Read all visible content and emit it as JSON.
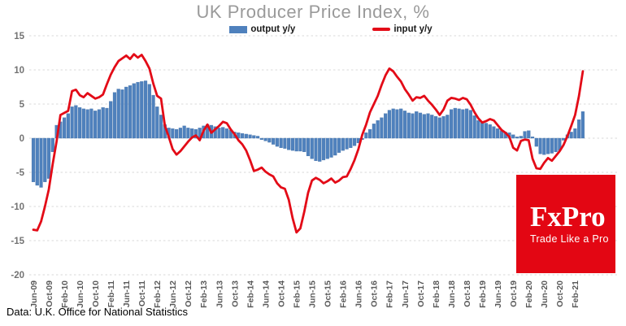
{
  "title": "UK Producer Price Index, %",
  "legend": {
    "output": "output y/y",
    "input": "input y/y"
  },
  "source_note": "Data: U.K. Office for National Statistics",
  "logo": {
    "brand": "FxPro",
    "tagline": "Trade Like a Pro"
  },
  "colors": {
    "bar": "#4f81bd",
    "bar_edge": "#3f6ea5",
    "line": "#e30b17",
    "grid": "#d9d9d9",
    "axis_text": "#737373",
    "x_axis_text": "#595959",
    "title_text": "#9a9a9a",
    "legend_text": "#1a1a1a",
    "logo_bg": "#e30613",
    "logo_text": "#ffffff"
  },
  "chart_data": {
    "type": "bar+line",
    "title": "UK Producer Price Index, %",
    "xlabel": "",
    "ylabel": "",
    "ylim": [
      -20,
      15
    ],
    "yticks": [
      15,
      10,
      5,
      0,
      -5,
      -10,
      -15,
      -20
    ],
    "grid": "dashed-horizontal",
    "legend_position": "top-center",
    "x_frequency": "monthly",
    "x_tick_step": 4,
    "x_tick_labels": [
      "Jun-09",
      "Oct-09",
      "Feb-10",
      "Jun-10",
      "Oct-10",
      "Feb-11",
      "Jun-11",
      "Oct-11",
      "Feb-12",
      "Jun-12",
      "Oct-12",
      "Feb-13",
      "Jun-13",
      "Oct-13",
      "Feb-14",
      "Jun-14",
      "Oct-14",
      "Feb-15",
      "Jun-15",
      "Oct-15",
      "Feb-16",
      "Jun-16",
      "Oct-16",
      "Feb-17",
      "Jun-17",
      "Oct-17",
      "Feb-18",
      "Jun-18",
      "Oct-18",
      "Feb-19",
      "Jun-19",
      "Oct-19",
      "Feb-20",
      "Jun-20",
      "Oct-20",
      "Feb-21"
    ],
    "x": [
      "Jun-09",
      "Jul-09",
      "Aug-09",
      "Sep-09",
      "Oct-09",
      "Nov-09",
      "Dec-09",
      "Jan-10",
      "Feb-10",
      "Mar-10",
      "Apr-10",
      "May-10",
      "Jun-10",
      "Jul-10",
      "Aug-10",
      "Sep-10",
      "Oct-10",
      "Nov-10",
      "Dec-10",
      "Jan-11",
      "Feb-11",
      "Mar-11",
      "Apr-11",
      "May-11",
      "Jun-11",
      "Jul-11",
      "Aug-11",
      "Sep-11",
      "Oct-11",
      "Nov-11",
      "Dec-11",
      "Jan-12",
      "Feb-12",
      "Mar-12",
      "Apr-12",
      "May-12",
      "Jun-12",
      "Jul-12",
      "Aug-12",
      "Sep-12",
      "Oct-12",
      "Nov-12",
      "Dec-12",
      "Jan-13",
      "Feb-13",
      "Mar-13",
      "Apr-13",
      "May-13",
      "Jun-13",
      "Jul-13",
      "Aug-13",
      "Sep-13",
      "Oct-13",
      "Nov-13",
      "Dec-13",
      "Jan-14",
      "Feb-14",
      "Mar-14",
      "Apr-14",
      "May-14",
      "Jun-14",
      "Jul-14",
      "Aug-14",
      "Sep-14",
      "Oct-14",
      "Nov-14",
      "Dec-14",
      "Jan-15",
      "Feb-15",
      "Mar-15",
      "Apr-15",
      "May-15",
      "Jun-15",
      "Jul-15",
      "Aug-15",
      "Sep-15",
      "Oct-15",
      "Nov-15",
      "Dec-15",
      "Jan-16",
      "Feb-16",
      "Mar-16",
      "Apr-16",
      "May-16",
      "Jun-16",
      "Jul-16",
      "Aug-16",
      "Sep-16",
      "Oct-16",
      "Nov-16",
      "Dec-16",
      "Jan-17",
      "Feb-17",
      "Mar-17",
      "Apr-17",
      "May-17",
      "Jun-17",
      "Jul-17",
      "Aug-17",
      "Sep-17",
      "Oct-17",
      "Nov-17",
      "Dec-17",
      "Jan-18",
      "Feb-18",
      "Mar-18",
      "Apr-18",
      "May-18",
      "Jun-18",
      "Jul-18",
      "Aug-18",
      "Sep-18",
      "Oct-18",
      "Nov-18",
      "Dec-18",
      "Jan-19",
      "Feb-19",
      "Mar-19",
      "Apr-19",
      "May-19",
      "Jun-19",
      "Jul-19",
      "Aug-19",
      "Sep-19",
      "Oct-19",
      "Nov-19",
      "Dec-19",
      "Jan-20",
      "Feb-20",
      "Mar-20",
      "Apr-20",
      "May-20",
      "Jun-20",
      "Jul-20",
      "Aug-20",
      "Sep-20",
      "Oct-20",
      "Nov-20",
      "Dec-20",
      "Jan-21",
      "Feb-21",
      "Mar-21",
      "Apr-21"
    ],
    "series": [
      {
        "name": "output y/y",
        "type": "bar",
        "color": "#4f81bd",
        "values": [
          -6.4,
          -6.9,
          -7.2,
          -6.4,
          -5.9,
          -2.0,
          1.9,
          2.4,
          3.0,
          3.6,
          4.6,
          4.8,
          4.5,
          4.3,
          4.2,
          4.3,
          4.0,
          4.2,
          4.5,
          4.4,
          5.4,
          6.7,
          7.2,
          7.1,
          7.5,
          7.7,
          8.0,
          8.2,
          8.3,
          8.4,
          7.9,
          6.3,
          4.6,
          3.4,
          2.0,
          1.5,
          1.4,
          1.3,
          1.5,
          1.8,
          1.5,
          1.4,
          1.3,
          1.5,
          1.8,
          2.0,
          1.9,
          1.7,
          1.5,
          1.6,
          1.4,
          1.2,
          0.9,
          0.8,
          0.7,
          0.6,
          0.5,
          0.4,
          0.3,
          -0.2,
          -0.4,
          -0.6,
          -0.9,
          -1.2,
          -1.4,
          -1.5,
          -1.7,
          -1.8,
          -1.9,
          -1.9,
          -2.0,
          -2.6,
          -3.0,
          -3.3,
          -3.4,
          -3.2,
          -3.0,
          -2.8,
          -2.5,
          -2.1,
          -1.8,
          -1.6,
          -1.4,
          -1.1,
          -0.7,
          -0.2,
          0.8,
          1.3,
          2.1,
          2.6,
          3.0,
          3.6,
          4.1,
          4.3,
          4.2,
          4.3,
          4.0,
          3.7,
          3.6,
          3.9,
          3.7,
          3.5,
          3.6,
          3.4,
          3.2,
          3.0,
          3.2,
          3.4,
          4.2,
          4.4,
          4.3,
          4.2,
          4.3,
          4.1,
          3.3,
          2.6,
          2.4,
          2.2,
          2.0,
          1.7,
          1.4,
          1.1,
          0.9,
          0.8,
          0.5,
          0.2,
          0.3,
          1.0,
          1.1,
          0.2,
          -1.2,
          -2.3,
          -2.4,
          -2.3,
          -2.2,
          -2.0,
          -1.8,
          -0.3,
          0.5,
          0.9,
          1.4,
          2.7,
          3.9
        ]
      },
      {
        "name": "input y/y",
        "type": "line",
        "color": "#e30b17",
        "values": [
          -13.4,
          -13.5,
          -12.2,
          -10.0,
          -7.5,
          -3.8,
          -0.5,
          3.4,
          3.7,
          4.0,
          6.9,
          7.1,
          6.3,
          6.0,
          6.6,
          6.2,
          5.8,
          6.0,
          6.4,
          7.9,
          9.3,
          10.4,
          11.3,
          11.7,
          12.1,
          11.6,
          12.3,
          11.8,
          12.2,
          11.3,
          10.2,
          8.0,
          6.2,
          5.8,
          1.8,
          0.2,
          -1.6,
          -2.4,
          -1.9,
          -1.2,
          -0.5,
          0.1,
          0.4,
          -0.3,
          1.1,
          2.0,
          0.8,
          1.3,
          1.8,
          2.4,
          2.2,
          1.3,
          0.6,
          -0.3,
          -0.9,
          -1.8,
          -3.2,
          -4.8,
          -4.6,
          -4.3,
          -4.9,
          -5.3,
          -5.6,
          -6.6,
          -7.2,
          -7.4,
          -9.0,
          -11.7,
          -13.8,
          -13.2,
          -10.8,
          -8.0,
          -6.2,
          -5.8,
          -6.1,
          -6.6,
          -6.3,
          -5.9,
          -6.5,
          -6.2,
          -5.7,
          -5.6,
          -4.5,
          -3.2,
          -1.6,
          0.5,
          2.0,
          3.8,
          5.0,
          6.2,
          7.8,
          9.2,
          10.2,
          9.8,
          9.0,
          8.3,
          7.2,
          6.4,
          5.5,
          6.0,
          5.9,
          6.2,
          5.5,
          4.9,
          4.2,
          3.4,
          4.2,
          5.5,
          5.9,
          5.8,
          5.6,
          5.9,
          5.7,
          4.9,
          3.8,
          2.9,
          2.3,
          2.5,
          2.8,
          2.6,
          1.9,
          1.2,
          0.8,
          0.2,
          -1.4,
          -1.8,
          -0.4,
          -0.2,
          -0.3,
          -3.0,
          -4.4,
          -4.5,
          -3.6,
          -2.9,
          -3.3,
          -2.6,
          -1.9,
          -1.0,
          0.3,
          1.8,
          3.4,
          6.2,
          9.8
        ]
      }
    ]
  }
}
